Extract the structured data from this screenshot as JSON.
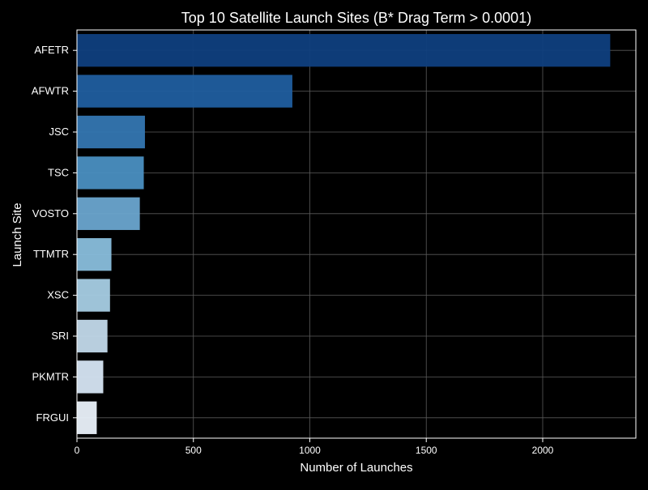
{
  "colors": {
    "background": "#000000",
    "text": "#ffffff",
    "grid": "#5a5a5a",
    "axis": "#ffffff"
  },
  "chart_data": {
    "type": "bar",
    "orientation": "horizontal",
    "title": "Top 10 Satellite Launch Sites (B* Drag Term > 0.0001)",
    "xlabel": "Number of Launches",
    "ylabel": "Launch Site",
    "categories": [
      "AFETR",
      "AFWTR",
      "JSC",
      "TSC",
      "VOSTO",
      "TTMTR",
      "XSC",
      "SRI",
      "PKMTR",
      "FRGUI"
    ],
    "values": [
      2290,
      925,
      292,
      287,
      270,
      148,
      142,
      131,
      113,
      85
    ],
    "bar_colors": [
      "#0f3f7e",
      "#205e9f",
      "#3476b1",
      "#4a8fc1",
      "#6aa5cf",
      "#89bedc",
      "#a7cde4",
      "#c2d9ea",
      "#d6e5f3",
      "#eaf1fa"
    ],
    "xlim": [
      0,
      2400
    ],
    "xticks": [
      0,
      500,
      1000,
      1500,
      2000
    ],
    "xtick_labels": [
      "0",
      "500",
      "1000",
      "1500",
      "2000"
    ],
    "grid": true,
    "legend": null
  }
}
